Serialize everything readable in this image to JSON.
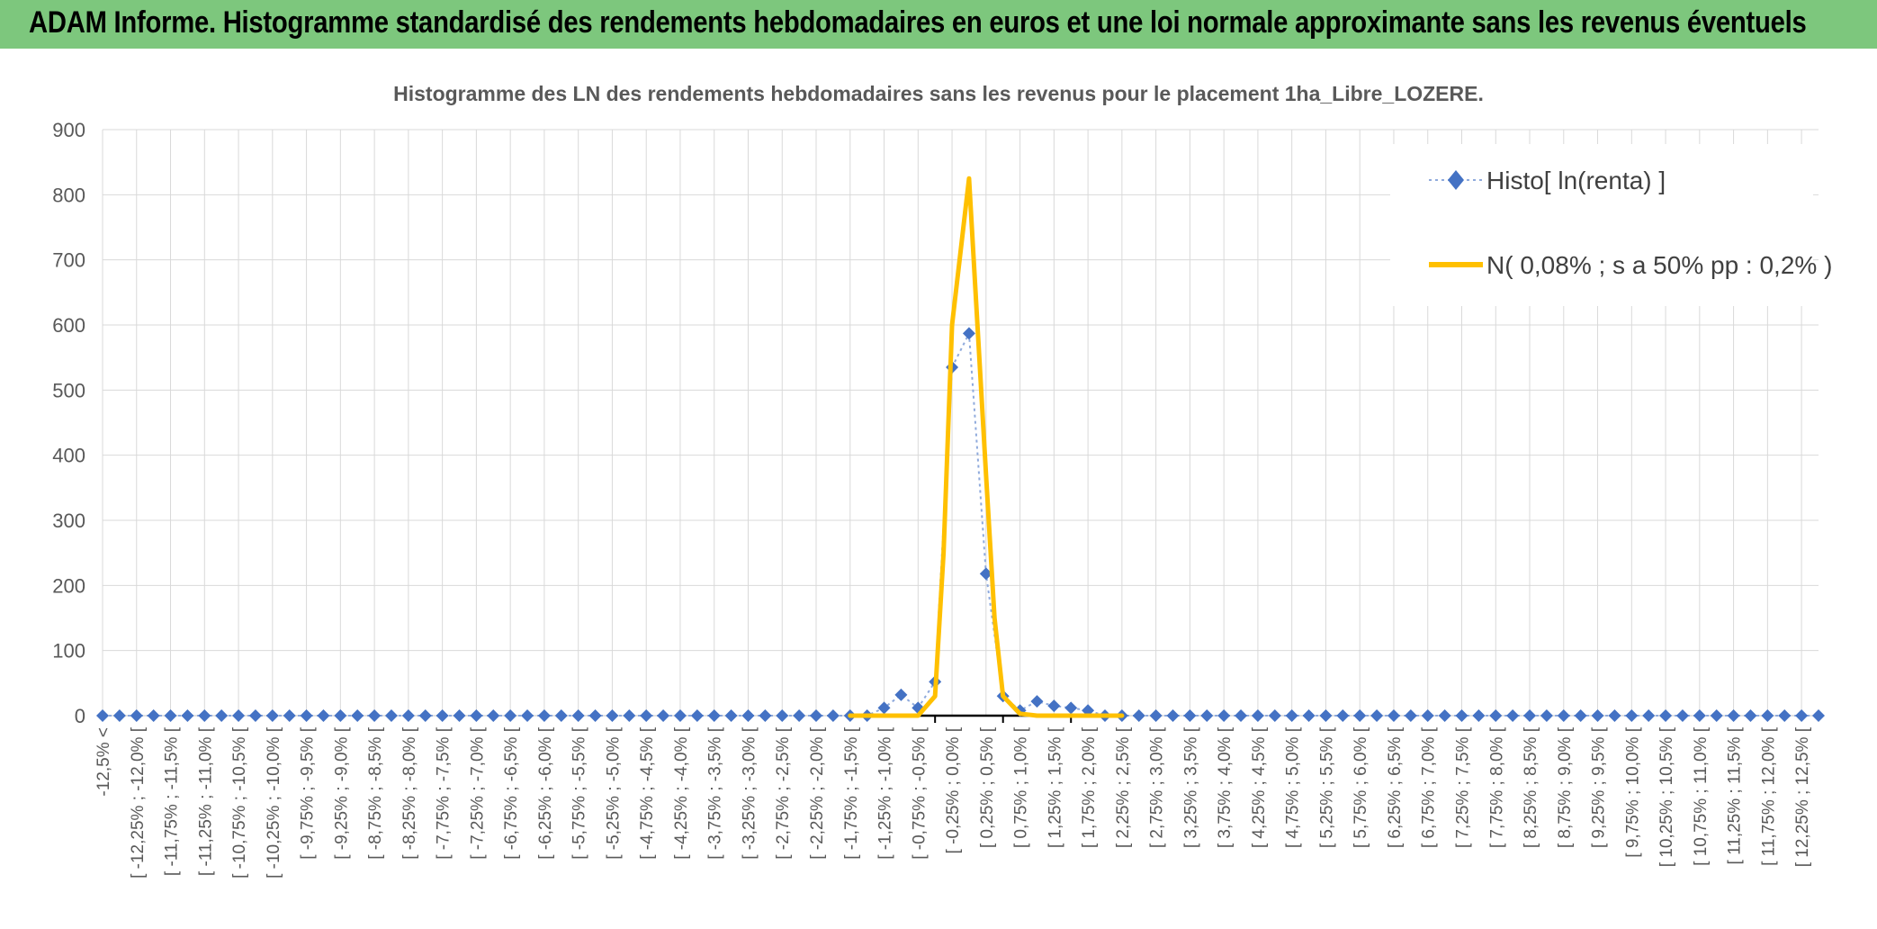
{
  "header": {
    "title": "ADAM Informe. Histogramme standardisé des rendements hebdomadaires en euros et une loi normale approximante sans les revenus éventuels"
  },
  "colors": {
    "banner": "#7dc77d",
    "series_histo": "#4472c4",
    "series_normal": "#ffc000",
    "grid": "#d9d9d9",
    "axis_text": "#595959"
  },
  "chart_data": {
    "type": "line",
    "title": "Histogramme des LN des rendements hebdomadaires sans les revenus pour le placement 1ha_Libre_LOZERE.",
    "xlabel": "",
    "ylabel": "",
    "ylim": [
      0,
      900
    ],
    "yticks": [
      0,
      100,
      200,
      300,
      400,
      500,
      600,
      700,
      800,
      900
    ],
    "grid": true,
    "legend_position": "top-right",
    "x_labels_every_other": [
      "-12,5% <",
      "[ -12,25% ; -12,0% [",
      "[ -11,75% ; -11,5% [",
      "[ -11,25% ; -11,0% [",
      "[ -10,75% ; -10,5% [",
      "[ -10,25% ; -10,0% [",
      "[ -9,75% ; -9,5% [",
      "[ -9,25% ; -9,0% [",
      "[ -8,75% ; -8,5% [",
      "[ -8,25% ; -8,0% [",
      "[ -7,75% ; -7,5% [",
      "[ -7,25% ; -7,0% [",
      "[ -6,75% ; -6,5% [",
      "[ -6,25% ; -6,0% [",
      "[ -5,75% ; -5,5% [",
      "[ -5,25% ; -5,0% [",
      "[ -4,75% ; -4,5% [",
      "[ -4,25% ; -4,0% [",
      "[ -3,75% ; -3,5% [",
      "[ -3,25% ; -3,0% [",
      "[ -2,75% ; -2,5% [",
      "[ -2,25% ; -2,0% [",
      "[ -1,75% ; -1,5% [",
      "[ -1,25% ; -1,0% [",
      "[ -0,75% ; -0,5% [",
      "[ -0,25% ; 0,0% [",
      "[ 0,25% ; 0,5% [",
      "[ 0,75% ; 1,0% [",
      "[ 1,25% ; 1,5% [",
      "[ 1,75% ; 2,0% [",
      "[ 2,25% ; 2,5% [",
      "[ 2,75% ; 3,0% [",
      "[ 3,25% ; 3,5% [",
      "[ 3,75% ; 4,0% [",
      "[ 4,25% ; 4,5% [",
      "[ 4,75% ; 5,0% [",
      "[ 5,25% ; 5,5% [",
      "[ 5,75% ; 6,0% [",
      "[ 6,25% ; 6,5% [",
      "[ 6,75% ; 7,0% [",
      "[ 7,25% ; 7,5% [",
      "[ 7,75% ; 8,0% [",
      "[ 8,25% ; 8,5% [",
      "[ 8,75% ; 9,0% [",
      "[ 9,25% ; 9,5% [",
      "[ 9,75% ; 10,0% [",
      "[ 10,25% ; 10,5% [",
      "[ 10,75% ; 11,0% [",
      "[ 11,25% ; 11,5% [",
      "[ 11,75% ; 12,0% [",
      "[ 12,25% ; 12,5% ["
    ],
    "categories_count": 102,
    "series": [
      {
        "name": "Histo[ ln(renta) ]",
        "marker": "diamond",
        "points": [
          [
            46,
            12
          ],
          [
            47,
            32
          ],
          [
            48,
            12
          ],
          [
            49,
            52
          ],
          [
            50,
            535
          ],
          [
            51,
            587
          ],
          [
            52,
            218
          ],
          [
            53,
            30
          ],
          [
            54,
            8
          ],
          [
            55,
            22
          ],
          [
            56,
            15
          ],
          [
            57,
            12
          ],
          [
            58,
            8
          ]
        ]
      },
      {
        "name": "N( 0,08% ; s a 50% pp : 0,2% )",
        "marker": "none",
        "points": [
          [
            47,
            0
          ],
          [
            48,
            0
          ],
          [
            49,
            30
          ],
          [
            49.5,
            250
          ],
          [
            50,
            600
          ],
          [
            51,
            825
          ],
          [
            52,
            370
          ],
          [
            52.5,
            150
          ],
          [
            53,
            30
          ],
          [
            54,
            3
          ],
          [
            55,
            0
          ]
        ]
      }
    ]
  }
}
